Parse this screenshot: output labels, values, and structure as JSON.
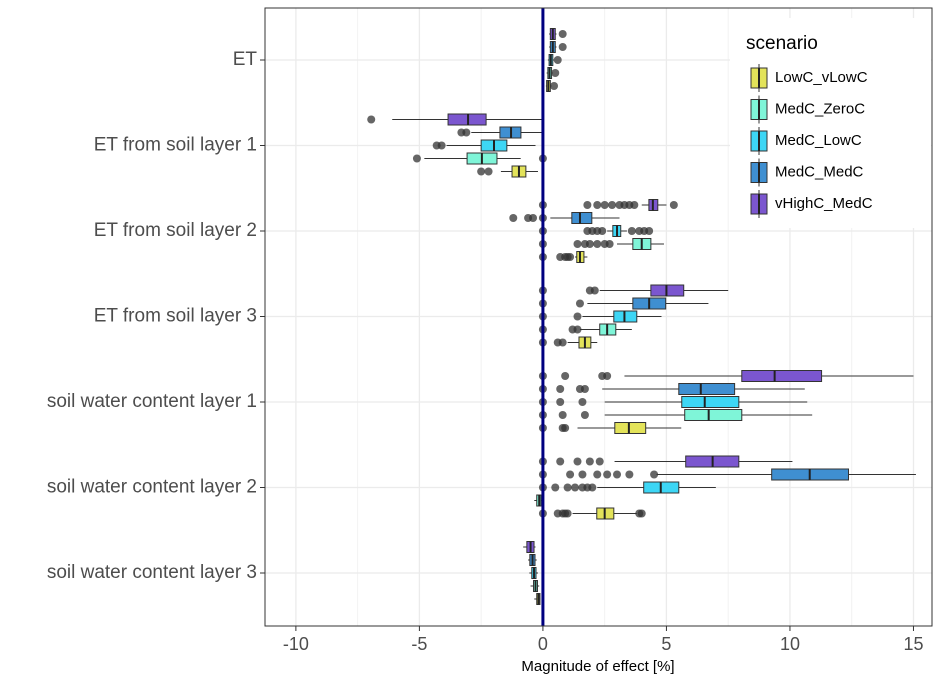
{
  "chart_data": {
    "type": "boxplot",
    "orientation": "horizontal",
    "x_label": "Magnitude of effect [%]",
    "legend_title": "scenario",
    "legend_position": "top-right",
    "grid": true,
    "xlim": [
      -11.25,
      15.75
    ],
    "xticks": [
      -10,
      -5,
      0,
      5,
      10,
      15
    ],
    "reference_line": {
      "value": 0,
      "color": "#000080"
    },
    "categories": [
      "ET",
      "ET from soil layer 1",
      "ET from soil layer 2",
      "ET from soil layer 3",
      "soil water content layer 1",
      "soil water content layer 2",
      "soil water content layer 3"
    ],
    "series": [
      {
        "name": "LowC_vLowC",
        "color": "#e3e35a",
        "whisker_low": [
          0.12,
          -1.7,
          1.3,
          1.0,
          1.4,
          1.2,
          -0.35
        ],
        "q1": [
          0.15,
          -1.25,
          1.37,
          1.46,
          2.91,
          2.18,
          -0.25
        ],
        "median": [
          0.22,
          -0.97,
          1.5,
          1.7,
          3.48,
          2.5,
          -0.18
        ],
        "q3": [
          0.3,
          -0.69,
          1.66,
          1.94,
          4.16,
          2.87,
          -0.12
        ],
        "whisker_high": [
          0.35,
          -0.2,
          1.8,
          2.2,
          5.6,
          3.8,
          -0.1
        ],
        "outliers": [
          [
            0.45
          ],
          [
            -2.5,
            -2.2
          ],
          [
            0,
            0.7,
            0.9,
            1.0,
            1.1
          ],
          [
            0,
            0.6,
            0.8
          ],
          [
            0,
            0.8,
            0.9
          ],
          [
            0,
            0.6,
            0.8,
            0.9,
            1.0,
            3.9,
            4.0
          ],
          []
        ]
      },
      {
        "name": "MedC_ZeroC",
        "color": "#7ff5d8",
        "whisker_low": [
          0.15,
          -4.8,
          3.0,
          1.5,
          2.5,
          -0.35,
          -0.5
        ],
        "q1": [
          0.2,
          -3.07,
          3.64,
          2.3,
          5.74,
          -0.25,
          -0.38
        ],
        "median": [
          0.27,
          -2.47,
          4.0,
          2.6,
          6.71,
          -0.15,
          -0.3
        ],
        "q3": [
          0.35,
          -1.86,
          4.37,
          2.95,
          8.05,
          -0.08,
          -0.22
        ],
        "whisker_high": [
          0.4,
          -0.9,
          4.9,
          3.6,
          10.9,
          0,
          -0.15
        ],
        "outliers": [
          [
            0.5
          ],
          [
            -5.1,
            0
          ],
          [
            0,
            1.4,
            1.7,
            1.9,
            2.2,
            2.5,
            2.7
          ],
          [
            0,
            1.2,
            1.4
          ],
          [
            0,
            0.8,
            1.7
          ],
          [],
          []
        ]
      },
      {
        "name": "MedC_LowC",
        "color": "#3dd6f5",
        "whisker_low": [
          0.2,
          -3.9,
          2.6,
          1.6,
          2.5,
          2.2,
          -0.55
        ],
        "q1": [
          0.25,
          -2.5,
          2.83,
          2.87,
          5.62,
          4.08,
          -0.45
        ],
        "median": [
          0.32,
          -1.98,
          3.0,
          3.3,
          6.55,
          4.77,
          -0.36
        ],
        "q3": [
          0.4,
          -1.46,
          3.15,
          3.8,
          7.93,
          5.5,
          -0.28
        ],
        "whisker_high": [
          0.45,
          -0.3,
          3.4,
          4.8,
          10.7,
          7.0,
          -0.2
        ],
        "outliers": [
          [
            0.6
          ],
          [
            -4.3,
            -4.1
          ],
          [
            0,
            1.8,
            2.0,
            2.2,
            2.4,
            3.6,
            3.9,
            4.1,
            4.3
          ],
          [
            0,
            1.4
          ],
          [
            0,
            0.7,
            1.6
          ],
          [
            0,
            0.5,
            1.0,
            1.3,
            1.6,
            1.8,
            2.0
          ],
          []
        ]
      },
      {
        "name": "MedC_MedC",
        "color": "#3f8fd1",
        "whisker_low": [
          0.25,
          -2.9,
          0.3,
          1.8,
          2.4,
          4.6,
          -0.6
        ],
        "q1": [
          0.3,
          -1.74,
          1.17,
          3.64,
          5.5,
          9.26,
          -0.53
        ],
        "median": [
          0.4,
          -1.29,
          1.5,
          4.3,
          6.39,
          10.8,
          -0.42
        ],
        "q3": [
          0.5,
          -0.89,
          1.98,
          4.97,
          7.76,
          12.37,
          -0.32
        ],
        "whisker_high": [
          0.55,
          0,
          3.1,
          6.7,
          10.6,
          15.1,
          -0.25
        ],
        "outliers": [
          [
            0.8
          ],
          [
            -3.3,
            -3.1
          ],
          [
            -1.2,
            -0.6,
            -0.4,
            0
          ],
          [
            0,
            1.5
          ],
          [
            0,
            0.7,
            1.5,
            1.7
          ],
          [
            0,
            1.1,
            1.6,
            2.2,
            2.6,
            3.0,
            3.5,
            4.5
          ],
          []
        ]
      },
      {
        "name": "vHighC_MedC",
        "color": "#7b56cf",
        "whisker_low": [
          0.25,
          -6.1,
          4.0,
          2.3,
          3.3,
          2.9,
          -0.8
        ],
        "q1": [
          0.3,
          -3.84,
          4.29,
          4.37,
          8.05,
          5.78,
          -0.65
        ],
        "median": [
          0.4,
          -3.03,
          4.45,
          5.0,
          9.38,
          6.87,
          -0.5
        ],
        "q3": [
          0.5,
          -2.3,
          4.65,
          5.7,
          11.28,
          7.93,
          -0.36
        ],
        "whisker_high": [
          0.55,
          0,
          5.0,
          7.5,
          15.0,
          10.1,
          -0.3
        ],
        "outliers": [
          [
            0.8
          ],
          [
            -6.95
          ],
          [
            0,
            1.8,
            2.2,
            2.5,
            2.8,
            3.1,
            3.3,
            3.5,
            3.7,
            5.3
          ],
          [
            0,
            1.9,
            2.1
          ],
          [
            0,
            0.9,
            2.4,
            2.6
          ],
          [
            0,
            0.7,
            1.4,
            1.9,
            2.3
          ],
          []
        ]
      }
    ]
  }
}
